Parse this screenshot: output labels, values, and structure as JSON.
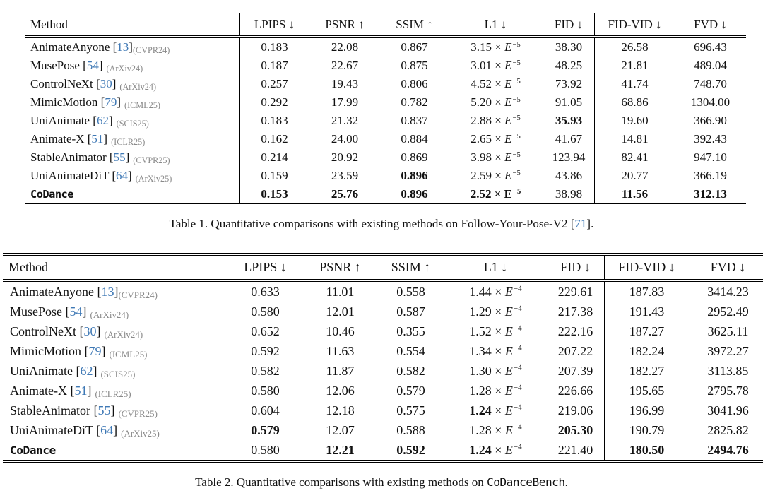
{
  "symbols": {
    "open": "[",
    "close": "]",
    "times": "×",
    "exp_base": "E"
  },
  "colors": {
    "citation_blue": "#3e78b5",
    "venue_gray": "#8a8a8a",
    "text": "#111111"
  },
  "captions": [
    {
      "prefix": "Table 1. Quantitative comparisons with existing methods on Follow-Your-Pose-V2 ",
      "cite": "71",
      "suffix": "."
    },
    {
      "prefix": "Table 2. Quantitative comparisons with existing methods on ",
      "bench": "CoDanceBench",
      "suffix": "."
    }
  ],
  "tables": [
    {
      "headers": [
        "Method",
        "LPIPS ↓",
        "PSNR ↑",
        "SSIM ↑",
        "L1 ↓",
        "FID ↓",
        "FID-VID ↓",
        "FVD ↓"
      ],
      "rows": [
        {
          "method": "AnimateAnyone",
          "cite": "13",
          "venue": "(CVPR24)",
          "attached": true,
          "mono": false,
          "lpips": {
            "t": "0.183"
          },
          "psnr": {
            "t": "22.08"
          },
          "ssim": {
            "t": "0.867"
          },
          "l1": {
            "m": "3.15",
            "e": "−5"
          },
          "fid": {
            "t": "38.30"
          },
          "fidvid": {
            "t": "26.58"
          },
          "fvd": {
            "t": "696.43"
          }
        },
        {
          "method": "MusePose",
          "cite": "54",
          "venue": "(ArXiv24)",
          "attached": false,
          "mono": false,
          "lpips": {
            "t": "0.187"
          },
          "psnr": {
            "t": "22.67"
          },
          "ssim": {
            "t": "0.875"
          },
          "l1": {
            "m": "3.01",
            "e": "−5"
          },
          "fid": {
            "t": "48.25"
          },
          "fidvid": {
            "t": "21.81"
          },
          "fvd": {
            "t": "489.04"
          }
        },
        {
          "method": "ControlNeXt",
          "cite": "30",
          "venue": "(ArXiv24)",
          "attached": false,
          "mono": false,
          "lpips": {
            "t": "0.257"
          },
          "psnr": {
            "t": "19.43"
          },
          "ssim": {
            "t": "0.806"
          },
          "l1": {
            "m": "4.52",
            "e": "−5"
          },
          "fid": {
            "t": "73.92"
          },
          "fidvid": {
            "t": "41.74"
          },
          "fvd": {
            "t": "748.70"
          }
        },
        {
          "method": "MimicMotion",
          "cite": "79",
          "venue": "(ICML25)",
          "attached": false,
          "mono": false,
          "lpips": {
            "t": "0.292"
          },
          "psnr": {
            "t": "17.99"
          },
          "ssim": {
            "t": "0.782"
          },
          "l1": {
            "m": "5.20",
            "e": "−5"
          },
          "fid": {
            "t": "91.05"
          },
          "fidvid": {
            "t": "68.86"
          },
          "fvd": {
            "t": "1304.00"
          }
        },
        {
          "method": "UniAnimate",
          "cite": "62",
          "venue": "(SCIS25)",
          "attached": false,
          "mono": false,
          "lpips": {
            "t": "0.183"
          },
          "psnr": {
            "t": "21.32"
          },
          "ssim": {
            "t": "0.837"
          },
          "l1": {
            "m": "2.88",
            "e": "−5"
          },
          "fid": {
            "t": "35.93",
            "b": true
          },
          "fidvid": {
            "t": "19.60"
          },
          "fvd": {
            "t": "366.90"
          }
        },
        {
          "method": "Animate-X",
          "cite": "51",
          "venue": "(ICLR25)",
          "attached": false,
          "mono": false,
          "lpips": {
            "t": "0.162"
          },
          "psnr": {
            "t": "24.00"
          },
          "ssim": {
            "t": "0.884"
          },
          "l1": {
            "m": "2.65",
            "e": "−5"
          },
          "fid": {
            "t": "41.67"
          },
          "fidvid": {
            "t": "14.81"
          },
          "fvd": {
            "t": "392.43"
          }
        },
        {
          "method": "StableAnimator",
          "cite": "55",
          "venue": "(CVPR25)",
          "attached": false,
          "mono": false,
          "lpips": {
            "t": "0.214"
          },
          "psnr": {
            "t": "20.92"
          },
          "ssim": {
            "t": "0.869"
          },
          "l1": {
            "m": "3.98",
            "e": "−5"
          },
          "fid": {
            "t": "123.94"
          },
          "fidvid": {
            "t": "82.41"
          },
          "fvd": {
            "t": "947.10"
          }
        },
        {
          "method": "UniAnimateDiT",
          "cite": "64",
          "venue": "(ArXiv25)",
          "attached": false,
          "mono": false,
          "lpips": {
            "t": "0.159"
          },
          "psnr": {
            "t": "23.59"
          },
          "ssim": {
            "t": "0.896",
            "b": true
          },
          "l1": {
            "m": "2.59",
            "e": "−5"
          },
          "fid": {
            "t": "43.86"
          },
          "fidvid": {
            "t": "20.77"
          },
          "fvd": {
            "t": "366.19"
          }
        },
        {
          "method": "CoDance",
          "cite": "",
          "venue": "",
          "attached": false,
          "mono": true,
          "lpips": {
            "t": "0.153",
            "b": true
          },
          "psnr": {
            "t": "25.76",
            "b": true
          },
          "ssim": {
            "t": "0.896",
            "b": true
          },
          "l1": {
            "m": "2.52",
            "e": "−5",
            "ball": true
          },
          "fid": {
            "t": "38.98"
          },
          "fidvid": {
            "t": "11.56",
            "b": true
          },
          "fvd": {
            "t": "312.13",
            "b": true
          }
        }
      ]
    },
    {
      "headers": [
        "Method",
        "LPIPS ↓",
        "PSNR ↑",
        "SSIM ↑",
        "L1 ↓",
        "FID ↓",
        "FID-VID ↓",
        "FVD ↓"
      ],
      "rows": [
        {
          "method": "AnimateAnyone",
          "cite": "13",
          "venue": "(CVPR24)",
          "attached": true,
          "mono": false,
          "lpips": {
            "t": "0.633"
          },
          "psnr": {
            "t": "11.01"
          },
          "ssim": {
            "t": "0.558"
          },
          "l1": {
            "m": "1.44",
            "e": "−4"
          },
          "fid": {
            "t": "229.61"
          },
          "fidvid": {
            "t": "187.83"
          },
          "fvd": {
            "t": "3414.23"
          }
        },
        {
          "method": "MusePose",
          "cite": "54",
          "venue": "(ArXiv24)",
          "attached": false,
          "mono": false,
          "lpips": {
            "t": "0.580"
          },
          "psnr": {
            "t": "12.01"
          },
          "ssim": {
            "t": "0.587"
          },
          "l1": {
            "m": "1.29",
            "e": "−4"
          },
          "fid": {
            "t": "217.38"
          },
          "fidvid": {
            "t": "191.43"
          },
          "fvd": {
            "t": "2952.49"
          }
        },
        {
          "method": "ControlNeXt",
          "cite": "30",
          "venue": "(ArXiv24)",
          "attached": false,
          "mono": false,
          "lpips": {
            "t": "0.652"
          },
          "psnr": {
            "t": "10.46"
          },
          "ssim": {
            "t": "0.355"
          },
          "l1": {
            "m": "1.52",
            "e": "−4"
          },
          "fid": {
            "t": "222.16"
          },
          "fidvid": {
            "t": "187.27"
          },
          "fvd": {
            "t": "3625.11"
          }
        },
        {
          "method": "MimicMotion",
          "cite": "79",
          "venue": "(ICML25)",
          "attached": false,
          "mono": false,
          "lpips": {
            "t": "0.592"
          },
          "psnr": {
            "t": "11.63"
          },
          "ssim": {
            "t": "0.554"
          },
          "l1": {
            "m": "1.34",
            "e": "−4"
          },
          "fid": {
            "t": "207.22"
          },
          "fidvid": {
            "t": "182.24"
          },
          "fvd": {
            "t": "3972.27"
          }
        },
        {
          "method": "UniAnimate",
          "cite": "62",
          "venue": "(SCIS25)",
          "attached": false,
          "mono": false,
          "lpips": {
            "t": "0.582"
          },
          "psnr": {
            "t": "11.87"
          },
          "ssim": {
            "t": "0.582"
          },
          "l1": {
            "m": "1.30",
            "e": "−4"
          },
          "fid": {
            "t": "207.39"
          },
          "fidvid": {
            "t": "182.27"
          },
          "fvd": {
            "t": "3113.85"
          }
        },
        {
          "method": "Animate-X",
          "cite": "51",
          "venue": "(ICLR25)",
          "attached": false,
          "mono": false,
          "lpips": {
            "t": "0.580"
          },
          "psnr": {
            "t": "12.06"
          },
          "ssim": {
            "t": "0.579"
          },
          "l1": {
            "m": "1.28",
            "e": "−4"
          },
          "fid": {
            "t": "226.66"
          },
          "fidvid": {
            "t": "195.65"
          },
          "fvd": {
            "t": "2795.78"
          }
        },
        {
          "method": "StableAnimator",
          "cite": "55",
          "venue": "(CVPR25)",
          "attached": false,
          "mono": false,
          "lpips": {
            "t": "0.604"
          },
          "psnr": {
            "t": "12.18"
          },
          "ssim": {
            "t": "0.575"
          },
          "l1": {
            "m": "1.24",
            "e": "−4",
            "bm": true
          },
          "fid": {
            "t": "219.06"
          },
          "fidvid": {
            "t": "196.99"
          },
          "fvd": {
            "t": "3041.96"
          }
        },
        {
          "method": "UniAnimateDiT",
          "cite": "64",
          "venue": "(ArXiv25)",
          "attached": false,
          "mono": false,
          "lpips": {
            "t": "0.579",
            "b": true
          },
          "psnr": {
            "t": "12.07"
          },
          "ssim": {
            "t": "0.588"
          },
          "l1": {
            "m": "1.28",
            "e": "−4"
          },
          "fid": {
            "t": "205.30",
            "b": true
          },
          "fidvid": {
            "t": "190.79"
          },
          "fvd": {
            "t": "2825.82"
          }
        },
        {
          "method": "CoDance",
          "cite": "",
          "venue": "",
          "attached": false,
          "mono": true,
          "lpips": {
            "t": "0.580"
          },
          "psnr": {
            "t": "12.21",
            "b": true
          },
          "ssim": {
            "t": "0.592",
            "b": true
          },
          "l1": {
            "m": "1.24",
            "e": "−4",
            "bm": true
          },
          "fid": {
            "t": "221.40"
          },
          "fidvid": {
            "t": "180.50",
            "b": true
          },
          "fvd": {
            "t": "2494.76",
            "b": true
          }
        }
      ]
    }
  ]
}
